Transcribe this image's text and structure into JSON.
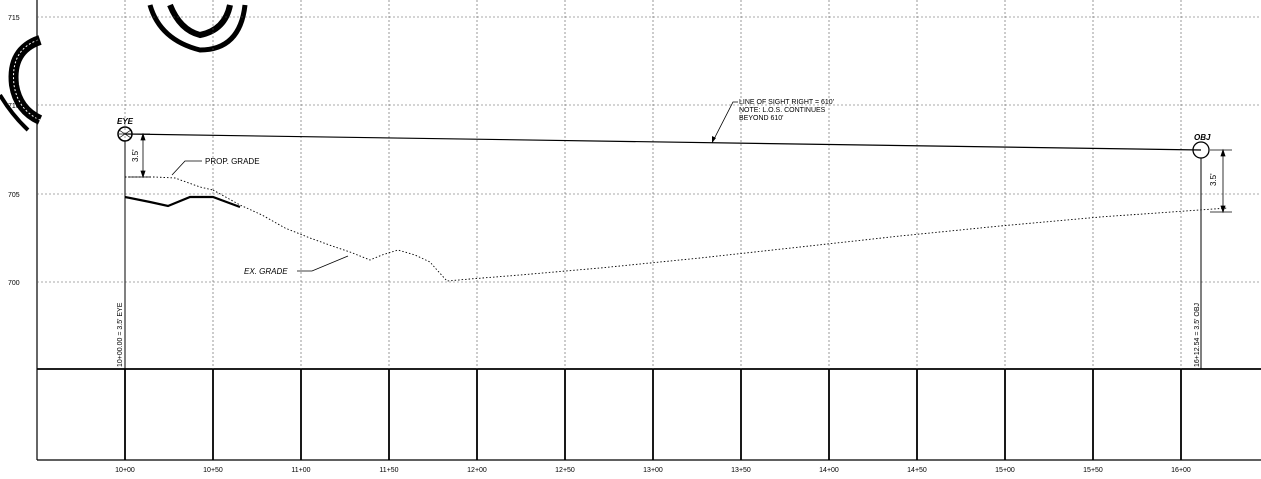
{
  "y_labels": [
    "715",
    "710",
    "705",
    "700"
  ],
  "x_labels": [
    "10+00",
    "10+50",
    "11+00",
    "11+50",
    "12+00",
    "12+50",
    "13+00",
    "13+50",
    "14+00",
    "14+50",
    "15+00",
    "15+50",
    "16+00"
  ],
  "annotations": {
    "eye": "EYE",
    "obj": "OBJ",
    "eye_height": "3.5'",
    "obj_height": "3.5'",
    "prop_grade": "PROP. GRADE",
    "ex_grade": "EX. GRADE",
    "los_line1": "LINE OF SIGHT RIGHT = 610'",
    "los_line2": "NOTE: L.O.S. CONTINUES",
    "los_line3": "BEYOND 610'",
    "eye_station": "10+00.00 = 3.5' EYE",
    "obj_station": "16+12.54 = 3.5' OBJ"
  },
  "colors": {
    "ink": "#000000",
    "grid": "#555555",
    "paper": "#ffffff"
  },
  "icons": [
    "eye-circle-icon",
    "object-circle-icon",
    "watermark-stamp-icon"
  ]
}
